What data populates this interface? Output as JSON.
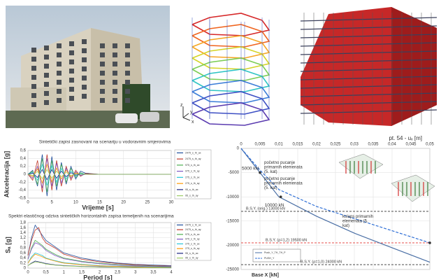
{
  "model_axes": [
    "z",
    "y",
    "x"
  ],
  "chart_data": [
    {
      "type": "line",
      "title": "Sintetički zapisi zasnovani na scenariju u vodoravnim smjerovima",
      "x_label": "Vrijeme [s]",
      "y_label": "Akceleracija [g]",
      "x": [
        0,
        1,
        2,
        3,
        4,
        5,
        6,
        7,
        8,
        9,
        10,
        11,
        12,
        15,
        20,
        30
      ],
      "xlim": [
        0,
        30
      ],
      "xticks": [
        0,
        5,
        10,
        15,
        20,
        25,
        30
      ],
      "ylim": [
        -0.6,
        0.6
      ],
      "yticks": [
        {
          "value": 0.6,
          "label": "0,6"
        },
        {
          "value": 0.4,
          "label": "0,4"
        },
        {
          "value": 0.2,
          "label": "0,2"
        },
        0,
        {
          "value": -0.2,
          "label": "-0,2"
        },
        {
          "value": -0.4,
          "label": "-0,4"
        },
        {
          "value": -0.6,
          "label": "-0,6"
        }
      ],
      "grid": true,
      "series": [
        {
          "name": "2475_s_th_ax",
          "color": "#1f4e9c",
          "values": [
            0,
            0.1,
            -0.3,
            0.5,
            -0.55,
            0.45,
            -0.4,
            0.3,
            -0.25,
            0.2,
            -0.12,
            0.08,
            0.03,
            0,
            0,
            0
          ]
        },
        {
          "name": "2475_s_th_ay",
          "color": "#c0392b",
          "values": [
            0,
            -0.15,
            0.35,
            -0.45,
            0.5,
            -0.4,
            0.35,
            -0.3,
            0.2,
            -0.15,
            0.1,
            -0.05,
            0.02,
            0,
            0,
            0
          ]
        },
        {
          "name": "975_s_th_ax",
          "color": "#4caf50",
          "values": [
            0,
            0.08,
            -0.25,
            0.4,
            -0.45,
            0.35,
            -0.3,
            0.25,
            -0.2,
            0.15,
            -0.08,
            0.04,
            0,
            0,
            0,
            0
          ]
        },
        {
          "name": "975_s_th_ay",
          "color": "#7e57c2",
          "values": [
            0,
            -0.1,
            0.2,
            -0.35,
            0.4,
            -0.3,
            0.28,
            -0.22,
            0.15,
            -0.1,
            0.06,
            -0.03,
            0,
            0,
            0,
            0
          ]
        },
        {
          "name": "275_s_th_ax",
          "color": "#26c6da",
          "values": [
            0,
            0.05,
            -0.15,
            0.25,
            -0.28,
            0.22,
            -0.2,
            0.15,
            -0.12,
            0.08,
            -0.04,
            0.02,
            0,
            0,
            0,
            0
          ]
        },
        {
          "name": "275_s_th_ay",
          "color": "#ff9800",
          "values": [
            0,
            -0.06,
            0.14,
            -0.22,
            0.25,
            -0.2,
            0.16,
            -0.12,
            0.1,
            -0.06,
            0.03,
            0,
            0,
            0,
            0,
            0
          ]
        },
        {
          "name": "95_s_th_ax",
          "color": "#1a237e",
          "values": [
            0,
            0.03,
            -0.08,
            0.12,
            -0.14,
            0.12,
            -0.1,
            0.08,
            -0.06,
            0.04,
            -0.02,
            0,
            0,
            0,
            0,
            0
          ]
        },
        {
          "name": "95_s_th_ay",
          "color": "#9ccc65",
          "values": [
            0,
            -0.03,
            0.07,
            -0.11,
            0.12,
            -0.1,
            0.08,
            -0.06,
            0.05,
            -0.03,
            0.01,
            0,
            0,
            0,
            0,
            0
          ]
        }
      ]
    },
    {
      "type": "line",
      "title": "Spektri elastičnog odziva sintetičkih horizontalnih zapisa temeljenih na scenarijima",
      "x_label": "Period [s]",
      "y_label": "Sₐ [g]",
      "x": [
        0,
        0.1,
        0.2,
        0.3,
        0.4,
        0.5,
        0.75,
        1,
        1.5,
        2,
        2.5,
        3,
        3.5,
        4
      ],
      "xlim": [
        0,
        4
      ],
      "xticks": [
        0,
        {
          "value": 0.5,
          "label": "0,5"
        },
        1,
        {
          "value": 1.5,
          "label": "1,5"
        },
        2,
        {
          "value": 2.5,
          "label": "2,5"
        },
        3,
        {
          "value": 3.5,
          "label": "3,5"
        },
        4
      ],
      "ylim": [
        0,
        1.8
      ],
      "yticks": [
        0,
        {
          "value": 0.2,
          "label": "0,2"
        },
        {
          "value": 0.4,
          "label": "0,4"
        },
        {
          "value": 0.6,
          "label": "0,6"
        },
        {
          "value": 0.8,
          "label": "0,8"
        },
        1,
        {
          "value": 1.2,
          "label": "1,2"
        },
        {
          "value": 1.4,
          "label": "1,4"
        },
        {
          "value": 1.6,
          "label": "1,6"
        },
        {
          "value": 1.8,
          "label": "1,8"
        }
      ],
      "grid": true,
      "series": [
        {
          "name": "2475_s_th_ax",
          "color": "#1f4e9c",
          "values": [
            0.5,
            1.2,
            1.7,
            1.5,
            1.3,
            1.1,
            0.85,
            0.6,
            0.4,
            0.28,
            0.2,
            0.15,
            0.12,
            0.1
          ]
        },
        {
          "name": "2475_s_th_ay",
          "color": "#c0392b",
          "values": [
            0.5,
            1.1,
            1.5,
            1.6,
            1.2,
            1.0,
            0.8,
            0.55,
            0.35,
            0.25,
            0.18,
            0.13,
            0.1,
            0.08
          ]
        },
        {
          "name": "975_s_th_ax",
          "color": "#4caf50",
          "values": [
            0.35,
            0.8,
            1.1,
            1.0,
            0.9,
            0.75,
            0.55,
            0.4,
            0.27,
            0.19,
            0.14,
            0.1,
            0.08,
            0.07
          ]
        },
        {
          "name": "975_s_th_ay",
          "color": "#7e57c2",
          "values": [
            0.35,
            0.75,
            1.0,
            0.95,
            0.85,
            0.7,
            0.5,
            0.37,
            0.25,
            0.17,
            0.12,
            0.09,
            0.07,
            0.06
          ]
        },
        {
          "name": "275_s_th_ax",
          "color": "#26c6da",
          "values": [
            0.2,
            0.45,
            0.6,
            0.55,
            0.5,
            0.4,
            0.3,
            0.22,
            0.15,
            0.1,
            0.08,
            0.06,
            0.05,
            0.04
          ]
        },
        {
          "name": "275_s_th_ay",
          "color": "#ff9800",
          "values": [
            0.2,
            0.4,
            0.55,
            0.5,
            0.45,
            0.38,
            0.28,
            0.2,
            0.13,
            0.09,
            0.07,
            0.05,
            0.04,
            0.03
          ]
        },
        {
          "name": "95_s_th_ax",
          "color": "#1a237e",
          "values": [
            0.1,
            0.2,
            0.28,
            0.25,
            0.22,
            0.18,
            0.13,
            0.1,
            0.07,
            0.05,
            0.04,
            0.03,
            0.02,
            0.02
          ]
        },
        {
          "name": "95_s_th_ay",
          "color": "#9ccc65",
          "values": [
            0.1,
            0.18,
            0.25,
            0.23,
            0.2,
            0.16,
            0.12,
            0.09,
            0.06,
            0.04,
            0.03,
            0.02,
            0.02,
            0.01
          ]
        }
      ]
    },
    {
      "type": "line",
      "x_label": "pt. 54 - uₓ [m]",
      "y_label": "Base X [kN]",
      "x_axis_position": "top",
      "x": [
        0,
        0.005,
        0.01,
        0.02,
        0.03,
        0.04,
        0.05
      ],
      "xlim": [
        0,
        0.05
      ],
      "xticks": [
        0,
        {
          "value": 0.005,
          "label": "0,005"
        },
        {
          "value": 0.01,
          "label": "0,01"
        },
        {
          "value": 0.015,
          "label": "0,015"
        },
        {
          "value": 0.02,
          "label": "0,02"
        },
        {
          "value": 0.025,
          "label": "0,025"
        },
        {
          "value": 0.03,
          "label": "0,03"
        },
        {
          "value": 0.035,
          "label": "0,035"
        },
        {
          "value": 0.04,
          "label": "0,04"
        },
        {
          "value": 0.045,
          "label": "0,045"
        },
        {
          "value": 0.05,
          "label": "0,05"
        }
      ],
      "ylim": [
        -25000,
        0
      ],
      "yticks": [
        0,
        -5000,
        -10000,
        -15000,
        -20000,
        -25000
      ],
      "grid": true,
      "series": [
        {
          "name": "Push_Y_TH_TH_P",
          "color": "#4a6fa5",
          "values": [
            0,
            -5000,
            -10000,
            -14000,
            -17500,
            -20500,
            -23500
          ]
        },
        {
          "name": "PUSH_Y",
          "color": "#2f6fd6",
          "dash": true,
          "values": [
            0,
            -4500,
            -8500,
            -12000,
            -14500,
            -17000,
            -19500
          ]
        }
      ],
      "reference_lines": [
        {
          "value": -13000,
          "label": "B.S.Y. (orig.) 13000 kN",
          "color": "#333"
        },
        {
          "value": -19500,
          "label": "B.S.Y. (ρ=1,2) 19500 kN",
          "color": "#e53935"
        },
        {
          "value": -24000,
          "label": "B.S.Y. (ρ=1,0) 24000 kN",
          "color": "#333"
        }
      ],
      "points": [
        {
          "x": 0.005,
          "y": -5000,
          "label": "5000 kN"
        },
        {
          "x": 0.0105,
          "y": -10000,
          "label": "10000 kN"
        },
        {
          "x": 0.05,
          "y": -19500
        }
      ],
      "annotations": [
        "početno pucanje primarnih elemenata (5. kat)",
        "početno pucanje primarnih elemenata (5. kat)",
        "kolaps primarnih elemenata (5. kat)"
      ]
    }
  ]
}
